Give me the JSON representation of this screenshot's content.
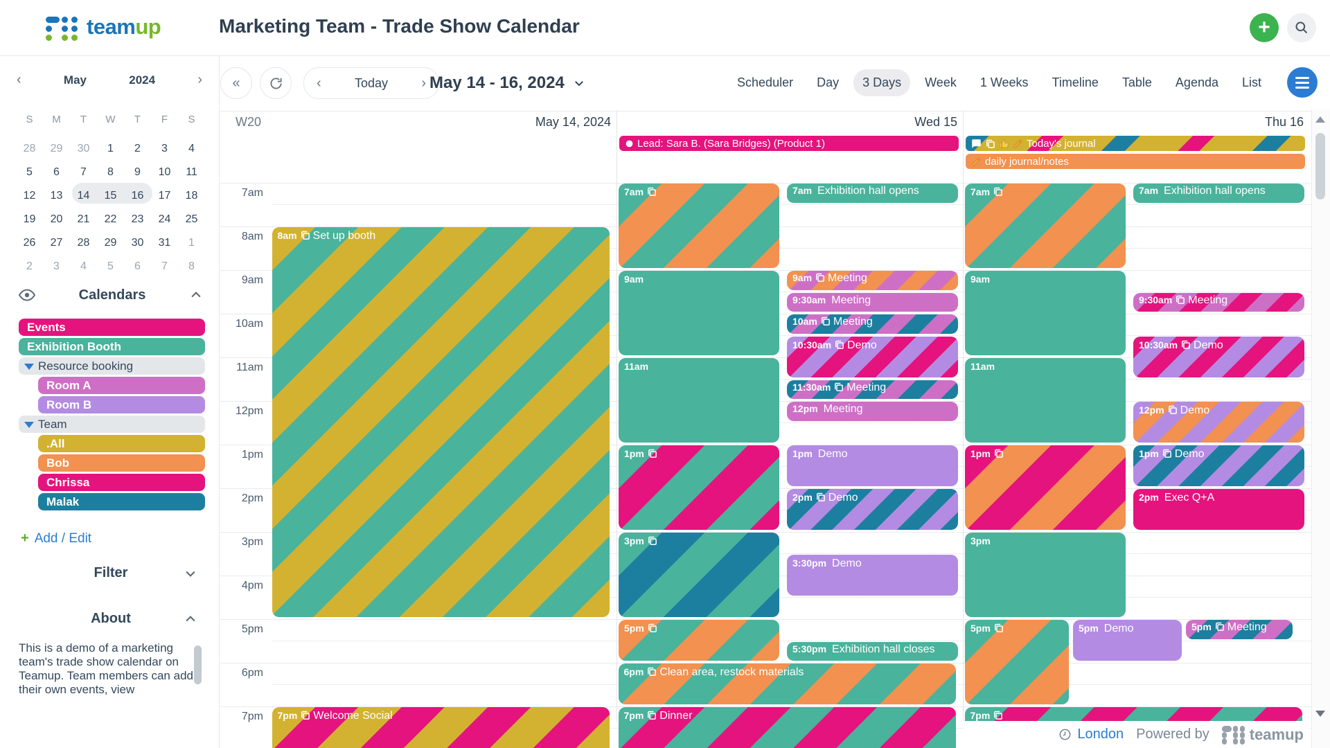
{
  "colors": {
    "magenta": "#e5137d",
    "teal": "#49b39c",
    "orchid": "#ce6fc6",
    "purple": "#b38be3",
    "gold": "#d2b230",
    "orange": "#f29150",
    "blue": "#1c7f9f",
    "group_gray": "#e4e7ea",
    "link_blue": "#2b7cd3",
    "logo_blue": "#1b75b9",
    "logo_green": "#76b82a",
    "plus_green": "#3cb34f"
  },
  "header": {
    "logo_team": "team",
    "logo_up": "up",
    "title": "Marketing Team - Trade Show Calendar"
  },
  "toolbar": {
    "back_double": "«",
    "today_label": "Today",
    "date_range": "May 14 - 16, 2024",
    "views": [
      "Scheduler",
      "Day",
      "3 Days",
      "Week",
      "1 Weeks",
      "Timeline",
      "Table",
      "Agenda",
      "List"
    ],
    "active_view": "3 Days"
  },
  "mini_calendar": {
    "month": "May",
    "year": "2024",
    "weekdays": [
      "S",
      "M",
      "T",
      "W",
      "T",
      "F",
      "S"
    ],
    "weeks": [
      [
        {
          "t": "28",
          "m": 1
        },
        {
          "t": "29",
          "m": 1
        },
        {
          "t": "30",
          "m": 1
        },
        {
          "t": "1"
        },
        {
          "t": "2"
        },
        {
          "t": "3"
        },
        {
          "t": "4"
        }
      ],
      [
        {
          "t": "5"
        },
        {
          "t": "6"
        },
        {
          "t": "7"
        },
        {
          "t": "8"
        },
        {
          "t": "9"
        },
        {
          "t": "10"
        },
        {
          "t": "11"
        }
      ],
      [
        {
          "t": "12"
        },
        {
          "t": "13"
        },
        {
          "t": "14",
          "sel": 1
        },
        {
          "t": "15",
          "sel": 1
        },
        {
          "t": "16",
          "sel": 1
        },
        {
          "t": "17"
        },
        {
          "t": "18"
        }
      ],
      [
        {
          "t": "19"
        },
        {
          "t": "20"
        },
        {
          "t": "21"
        },
        {
          "t": "22"
        },
        {
          "t": "23"
        },
        {
          "t": "24"
        },
        {
          "t": "25"
        }
      ],
      [
        {
          "t": "26"
        },
        {
          "t": "27"
        },
        {
          "t": "28"
        },
        {
          "t": "29"
        },
        {
          "t": "30"
        },
        {
          "t": "31"
        },
        {
          "t": "1",
          "m": 1
        }
      ],
      [
        {
          "t": "2",
          "m": 1
        },
        {
          "t": "3",
          "m": 1
        },
        {
          "t": "4",
          "m": 1
        },
        {
          "t": "5",
          "m": 1
        },
        {
          "t": "6",
          "m": 1
        },
        {
          "t": "7",
          "m": 1
        },
        {
          "t": "8",
          "m": 1
        }
      ]
    ]
  },
  "sidebar": {
    "calendars_title": "Calendars",
    "items": [
      {
        "label": "Events",
        "kind": "cal",
        "color": "magenta",
        "indent": false
      },
      {
        "label": "Exhibition Booth",
        "kind": "cal",
        "color": "teal",
        "indent": false
      },
      {
        "label": "Resource booking",
        "kind": "group",
        "indent": false
      },
      {
        "label": "Room A",
        "kind": "cal",
        "color": "orchid",
        "indent": true
      },
      {
        "label": "Room B",
        "kind": "cal",
        "color": "purple",
        "indent": true
      },
      {
        "label": "Team",
        "kind": "group",
        "indent": false
      },
      {
        "label": ".All",
        "kind": "cal",
        "color": "gold",
        "indent": true
      },
      {
        "label": "Bob",
        "kind": "cal",
        "color": "orange",
        "indent": true
      },
      {
        "label": "Chrissa",
        "kind": "cal",
        "color": "magenta",
        "indent": true
      },
      {
        "label": "Malak",
        "kind": "cal",
        "color": "blue",
        "indent": true
      }
    ],
    "add_plus": "+",
    "add_edit_label": "Add / Edit",
    "filter_title": "Filter",
    "about_title": "About",
    "about_text": "This is a demo of a marketing team's trade show calendar on Teamup. Team members can add their own events, view"
  },
  "calendar": {
    "days": [
      {
        "left": "W20",
        "title": "May 14, 2024"
      },
      {
        "left": "",
        "title": "Wed 15"
      },
      {
        "left": "",
        "title": "Thu 16"
      }
    ],
    "hours": [
      "7am",
      "8am",
      "9am",
      "10am",
      "11am",
      "12pm",
      "1pm",
      "2pm",
      "3pm",
      "4pm",
      "5pm",
      "6pm",
      "7pm"
    ],
    "allday": [
      {
        "day": 1,
        "row": 0,
        "text": "Lead: Sara B. (Sara Bridges) (Product 1)",
        "icons": [
          "dot"
        ],
        "bg": "magenta"
      },
      {
        "day": 2,
        "row": 0,
        "text": "Today's journal",
        "icons": [
          "bubble",
          "copy",
          "thumb",
          "pencil"
        ],
        "bg": "journal"
      },
      {
        "day": 2,
        "row": 1,
        "text": "daily journal/notes",
        "icons": [
          "pencil"
        ],
        "bg": "orange"
      }
    ],
    "events": [
      {
        "day": 0,
        "lane": "full",
        "start": 8,
        "end": 17,
        "time": "8am",
        "title": "Set up booth",
        "icon": true,
        "stripe": [
          "gold",
          "teal"
        ]
      },
      {
        "day": 0,
        "lane": "full",
        "start": 19,
        "end": 20.7,
        "time": "7pm",
        "title": "Welcome Social",
        "icon": true,
        "stripe": [
          "gold",
          "magenta"
        ]
      },
      {
        "day": 1,
        "lane": "left",
        "start": 7,
        "end": 9,
        "time": "7am",
        "title": "",
        "icon": true,
        "stripe": [
          "teal",
          "orange"
        ]
      },
      {
        "day": 1,
        "lane": "right",
        "start": 7,
        "end": 7.5,
        "time": "7am",
        "title": "Exhibition hall opens",
        "icon": false,
        "solid": "teal"
      },
      {
        "day": 1,
        "lane": "left",
        "start": 9,
        "end": 11,
        "time": "9am",
        "title": "",
        "icon": false,
        "solid": "teal"
      },
      {
        "day": 1,
        "lane": "left",
        "start": 11,
        "end": 13,
        "time": "11am",
        "title": "",
        "icon": false,
        "solid": "teal"
      },
      {
        "day": 1,
        "lane": "right",
        "start": 9,
        "end": 9.5,
        "time": "9am",
        "title": "Meeting",
        "icon": true,
        "stripe": [
          "orange",
          "orchid"
        ],
        "small": true
      },
      {
        "day": 1,
        "lane": "right",
        "start": 9.5,
        "end": 10,
        "time": "9:30am",
        "title": "Meeting",
        "icon": false,
        "solid": "orchid"
      },
      {
        "day": 1,
        "lane": "right",
        "start": 10,
        "end": 10.5,
        "time": "10am",
        "title": "Meeting",
        "icon": true,
        "stripe": [
          "blue",
          "orchid"
        ],
        "small": true
      },
      {
        "day": 1,
        "lane": "right",
        "start": 10.5,
        "end": 11.5,
        "time": "10:30am",
        "title": "Demo",
        "icon": true,
        "stripe": [
          "purple",
          "magenta"
        ],
        "small": true
      },
      {
        "day": 1,
        "lane": "right",
        "start": 11.5,
        "end": 12,
        "time": "11:30am",
        "title": "Meeting",
        "icon": true,
        "stripe": [
          "blue",
          "orchid"
        ],
        "small": true
      },
      {
        "day": 1,
        "lane": "right",
        "start": 12,
        "end": 12.5,
        "time": "12pm",
        "title": "Meeting",
        "icon": false,
        "solid": "orchid"
      },
      {
        "day": 1,
        "lane": "left",
        "start": 13,
        "end": 15,
        "time": "1pm",
        "title": "",
        "icon": true,
        "stripe": [
          "teal",
          "magenta"
        ]
      },
      {
        "day": 1,
        "lane": "right",
        "start": 13,
        "end": 14,
        "time": "1pm",
        "title": "Demo",
        "icon": false,
        "solid": "purple"
      },
      {
        "day": 1,
        "lane": "right",
        "start": 14,
        "end": 15,
        "time": "2pm",
        "title": "Demo",
        "icon": true,
        "stripe": [
          "purple",
          "blue"
        ],
        "small": true
      },
      {
        "day": 1,
        "lane": "left",
        "start": 15,
        "end": 17,
        "time": "3pm",
        "title": "",
        "icon": true,
        "stripe": [
          "teal",
          "blue"
        ]
      },
      {
        "day": 1,
        "lane": "right",
        "start": 15.5,
        "end": 16.5,
        "time": "3:30pm",
        "title": "Demo",
        "icon": false,
        "solid": "purple"
      },
      {
        "day": 1,
        "lane": "left",
        "start": 17,
        "end": 18,
        "time": "5pm",
        "title": "",
        "icon": true,
        "stripe": [
          "orange",
          "teal"
        ]
      },
      {
        "day": 1,
        "lane": "right",
        "start": 17.5,
        "end": 18,
        "time": "5:30pm",
        "title": "Exhibition hall closes",
        "icon": false,
        "solid": "teal"
      },
      {
        "day": 1,
        "lane": "full",
        "start": 18,
        "end": 19,
        "time": "6pm",
        "title": "Clean area, restock materials",
        "icon": true,
        "stripe": [
          "teal",
          "orange"
        ]
      },
      {
        "day": 1,
        "lane": "full",
        "start": 19,
        "end": 20.7,
        "time": "7pm",
        "title": "Dinner",
        "icon": true,
        "stripe": [
          "teal",
          "magenta"
        ]
      },
      {
        "day": 2,
        "lane": "left",
        "start": 7,
        "end": 9,
        "time": "7am",
        "title": "",
        "icon": true,
        "stripe": [
          "teal",
          "orange"
        ]
      },
      {
        "day": 2,
        "lane": "right",
        "start": 7,
        "end": 7.5,
        "time": "7am",
        "title": "Exhibition hall opens",
        "icon": false,
        "solid": "teal"
      },
      {
        "day": 2,
        "lane": "left",
        "start": 9,
        "end": 11,
        "time": "9am",
        "title": "",
        "icon": false,
        "solid": "teal"
      },
      {
        "day": 2,
        "lane": "left",
        "start": 11,
        "end": 13,
        "time": "11am",
        "title": "",
        "icon": false,
        "solid": "teal"
      },
      {
        "day": 2,
        "lane": "right",
        "start": 9.5,
        "end": 10,
        "time": "9:30am",
        "title": "Meeting",
        "icon": true,
        "stripe": [
          "orchid",
          "magenta"
        ],
        "small": true
      },
      {
        "day": 2,
        "lane": "right",
        "start": 10.5,
        "end": 11.5,
        "time": "10:30am",
        "title": "Demo",
        "icon": true,
        "stripe": [
          "magenta",
          "purple"
        ],
        "small": true
      },
      {
        "day": 2,
        "lane": "right",
        "start": 12,
        "end": 13,
        "time": "12pm",
        "title": "Demo",
        "icon": true,
        "stripe": [
          "purple",
          "orange"
        ],
        "small": true
      },
      {
        "day": 2,
        "lane": "left",
        "start": 13,
        "end": 15,
        "time": "1pm",
        "title": "",
        "icon": true,
        "stripe": [
          "magenta",
          "orange"
        ]
      },
      {
        "day": 2,
        "lane": "right",
        "start": 13,
        "end": 14,
        "time": "1pm",
        "title": "Demo",
        "icon": true,
        "stripe": [
          "blue",
          "purple"
        ],
        "small": true
      },
      {
        "day": 2,
        "lane": "right",
        "start": 14,
        "end": 15,
        "time": "2pm",
        "title": "Exec Q+A",
        "icon": false,
        "solid": "magenta"
      },
      {
        "day": 2,
        "lane": "left",
        "start": 15,
        "end": 17,
        "time": "3pm",
        "title": "",
        "icon": false,
        "solid": "teal"
      },
      {
        "day": 2,
        "lane": "left3",
        "start": 17,
        "end": 19,
        "time": "5pm",
        "title": "",
        "icon": true,
        "stripe": [
          "teal",
          "orange"
        ]
      },
      {
        "day": 2,
        "lane": "mid3",
        "start": 17,
        "end": 18,
        "time": "5pm",
        "title": "Demo",
        "icon": false,
        "solid": "purple"
      },
      {
        "day": 2,
        "lane": "right3",
        "start": 17,
        "end": 17.5,
        "time": "5pm",
        "title": "Meeting",
        "icon": true,
        "stripe": [
          "orchid",
          "blue"
        ],
        "small": true
      },
      {
        "day": 2,
        "lane": "full",
        "start": 19,
        "end": 20.7,
        "time": "7pm",
        "title": "",
        "icon": true,
        "stripe": [
          "teal",
          "magenta"
        ]
      }
    ]
  },
  "footer": {
    "timezone_label": "London",
    "powered": "Powered by",
    "brand": "teamup"
  }
}
